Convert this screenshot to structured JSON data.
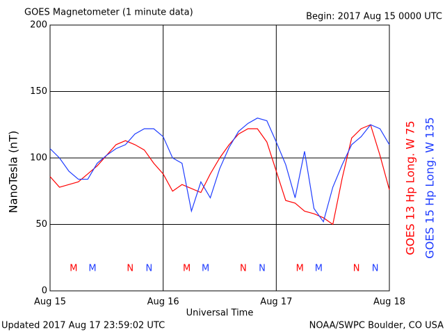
{
  "chart_data": {
    "type": "line",
    "title": "GOES Magnetometer (1 minute data)",
    "subtitle": "Begin:  2017 Aug 15 0000 UTC",
    "x_label": "Universal Time",
    "y_label": "NanoTesla (nT)",
    "footer_left": "Updated 2017 Aug 17 23:59:02 UTC",
    "footer_right": "NOAA/SWPC Boulder, CO USA",
    "x": [
      0,
      2,
      4,
      6,
      8,
      10,
      12,
      14,
      16,
      18,
      20,
      22,
      24,
      26,
      28,
      30,
      32,
      34,
      36,
      38,
      40,
      42,
      44,
      46,
      48,
      50,
      52,
      54,
      56,
      58,
      60,
      62,
      64,
      66,
      68,
      70,
      72
    ],
    "series": [
      {
        "name": "GOES 13 Hp  Long. W 75",
        "color": "#ff0000",
        "values": [
          86,
          78,
          80,
          82,
          88,
          94,
          102,
          110,
          113,
          110,
          106,
          96,
          88,
          75,
          80,
          77,
          74,
          88,
          100,
          110,
          118,
          122,
          122,
          112,
          90,
          68,
          66,
          60,
          58,
          55,
          50,
          85,
          115,
          122,
          125,
          102,
          76
        ]
      },
      {
        "name": "GOES 15 Hp  Long. W 135",
        "color": "#1e3cff",
        "values": [
          107,
          100,
          90,
          84,
          84,
          96,
          102,
          107,
          110,
          118,
          122,
          122,
          116,
          100,
          96,
          60,
          82,
          70,
          92,
          108,
          120,
          126,
          130,
          128,
          112,
          95,
          70,
          105,
          62,
          52,
          78,
          95,
          110,
          116,
          125,
          122,
          110
        ]
      }
    ],
    "markers": [
      {
        "label": "M",
        "x": 5,
        "series": 0
      },
      {
        "label": "M",
        "x": 9,
        "series": 1
      },
      {
        "label": "N",
        "x": 17,
        "series": 0
      },
      {
        "label": "N",
        "x": 21,
        "series": 1
      },
      {
        "label": "M",
        "x": 29,
        "series": 0
      },
      {
        "label": "M",
        "x": 33,
        "series": 1
      },
      {
        "label": "N",
        "x": 41,
        "series": 0
      },
      {
        "label": "N",
        "x": 45,
        "series": 1
      },
      {
        "label": "M",
        "x": 53,
        "series": 0
      },
      {
        "label": "M",
        "x": 57,
        "series": 1
      },
      {
        "label": "N",
        "x": 65,
        "series": 0
      },
      {
        "label": "N",
        "x": 69,
        "series": 1
      }
    ],
    "xlim": [
      0,
      72
    ],
    "xticks": [
      {
        "value": 0,
        "label": "Aug 15"
      },
      {
        "value": 24,
        "label": "Aug 16"
      },
      {
        "value": 48,
        "label": "Aug 17"
      },
      {
        "value": 72,
        "label": "Aug 18"
      }
    ],
    "ylim": [
      0,
      200
    ],
    "yticks": [
      0,
      50,
      100,
      150,
      200
    ],
    "grid": true
  }
}
